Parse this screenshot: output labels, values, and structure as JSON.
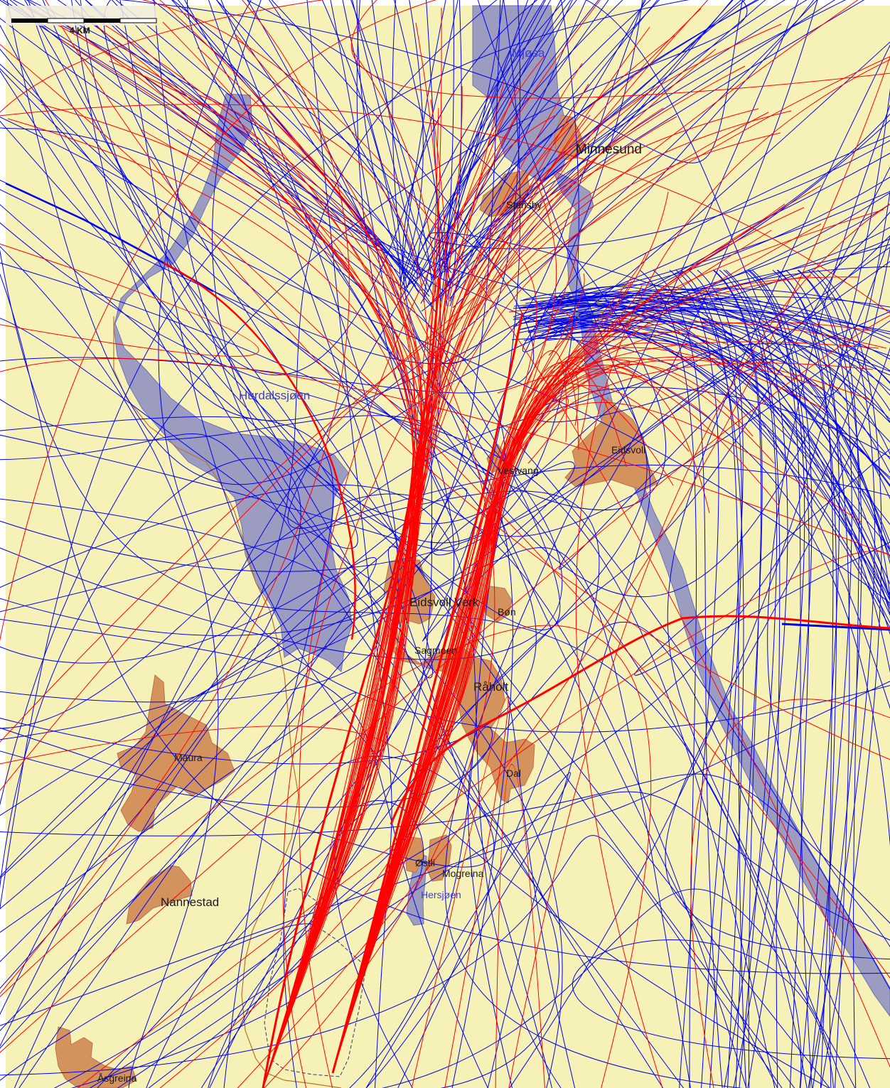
{
  "scale_bar": {
    "label": "4 KM"
  },
  "colors": {
    "land": "#f6f2b7",
    "water": "#9c9cc0",
    "water_edge": "#6a6ab8",
    "urban": "#d4935d",
    "urban_edge": "#c0704a",
    "departure_track": "#0000ee",
    "arrival_track": "#ff0000",
    "boundary": "#a0602a"
  },
  "water_labels": {
    "mjosa": "Mjøsa",
    "hurdalssjoen": "Hurdalssjøen",
    "hersjoen": "Hersjøen"
  },
  "places": {
    "minnesund": "Minnesund",
    "stensby": "Stensby",
    "eidsvoll": "Eidsvoll",
    "vestvang": "Vestvang",
    "eidsvoll_verk": "Eidsvoll Verk",
    "bon": "Bøn",
    "sagmoen": "Sagmoen",
    "raholt": "Råholt",
    "maura": "Maura",
    "dal": "Dal",
    "ostli": "Østli",
    "mogreina": "Mogreina",
    "nannestad": "Nannestad",
    "asgreina": "Åsgreina"
  }
}
